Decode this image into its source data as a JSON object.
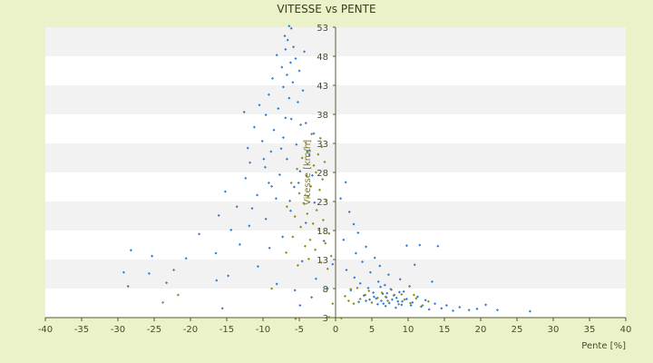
{
  "chart_data": {
    "type": "scatter",
    "title": "VITESSE vs PENTE",
    "xlabel": "Pente [%]",
    "ylabel": "Vitesse [km/h]",
    "xlim": [
      -40,
      40
    ],
    "ylim": [
      3,
      53
    ],
    "x_ticks": [
      -40,
      -35,
      -30,
      -25,
      -20,
      -15,
      -10,
      -5,
      0,
      5,
      10,
      15,
      20,
      25,
      30,
      35,
      40
    ],
    "y_ticks": [
      3,
      8,
      13,
      18,
      23,
      28,
      33,
      38,
      43,
      48,
      53
    ],
    "grid": "horizontal alternating bands",
    "colors": {
      "background": "#ebf1c9",
      "band_white": "#ffffff",
      "band_gray": "#f2f2f2",
      "axis": "#5a5a30",
      "series_blue": "#2e7bd1",
      "series_olive": "#8a8a1e"
    },
    "series": [
      {
        "color": "#2e7bd1",
        "points": [
          [
            -6.4,
            53.2
          ],
          [
            -6.1,
            52.8
          ],
          [
            -7.0,
            51.5
          ],
          [
            -6.6,
            50.8
          ],
          [
            -5.8,
            49.6
          ],
          [
            -6.9,
            49.2
          ],
          [
            -4.3,
            48.8
          ],
          [
            -8.1,
            48.2
          ],
          [
            -5.5,
            47.6
          ],
          [
            -6.2,
            46.9
          ],
          [
            -7.4,
            46.1
          ],
          [
            -5.0,
            45.5
          ],
          [
            -6.7,
            44.8
          ],
          [
            -8.7,
            44.2
          ],
          [
            -5.9,
            43.5
          ],
          [
            -7.2,
            42.7
          ],
          [
            -4.5,
            42.1
          ],
          [
            -9.2,
            41.4
          ],
          [
            -6.4,
            40.8
          ],
          [
            -5.2,
            40.1
          ],
          [
            -10.5,
            39.6
          ],
          [
            -7.9,
            39.0
          ],
          [
            -12.6,
            38.4
          ],
          [
            -9.6,
            37.9
          ],
          [
            -6.1,
            37.2
          ],
          [
            -4.1,
            36.5
          ],
          [
            -11.2,
            35.8
          ],
          [
            -8.5,
            35.3
          ],
          [
            -3.0,
            34.7
          ],
          [
            -7.2,
            34.0
          ],
          [
            -10.1,
            33.4
          ],
          [
            -5.4,
            32.8
          ],
          [
            -12.1,
            32.2
          ],
          [
            -8.9,
            31.6
          ],
          [
            -3.6,
            31.0
          ],
          [
            -6.7,
            30.3
          ],
          [
            -11.8,
            29.7
          ],
          [
            -9.7,
            28.9
          ],
          [
            -4.9,
            28.2
          ],
          [
            -7.7,
            27.6
          ],
          [
            -12.4,
            27.0
          ],
          [
            -9.2,
            26.2
          ],
          [
            -5.7,
            25.5
          ],
          [
            -15.2,
            24.7
          ],
          [
            -10.8,
            24.1
          ],
          [
            -8.2,
            23.5
          ],
          [
            -2.9,
            22.8
          ],
          [
            -13.6,
            22.1
          ],
          [
            -6.2,
            21.4
          ],
          [
            -16.1,
            20.6
          ],
          [
            -9.6,
            20.0
          ],
          [
            -4.1,
            19.3
          ],
          [
            -11.9,
            18.8
          ],
          [
            -14.4,
            18.1
          ],
          [
            -18.8,
            17.4
          ],
          [
            -7.3,
            16.9
          ],
          [
            -1.6,
            16.2
          ],
          [
            -13.2,
            15.6
          ],
          [
            -9.1,
            15.0
          ],
          [
            -28.2,
            14.6
          ],
          [
            -16.5,
            14.1
          ],
          [
            -25.3,
            13.6
          ],
          [
            -20.6,
            13.2
          ],
          [
            -4.6,
            12.7
          ],
          [
            -0.4,
            12.2
          ],
          [
            -10.7,
            11.8
          ],
          [
            -22.3,
            11.2
          ],
          [
            -29.2,
            10.8
          ],
          [
            -25.7,
            10.6
          ],
          [
            -14.8,
            10.2
          ],
          [
            -2.7,
            9.7
          ],
          [
            -16.4,
            9.4
          ],
          [
            -23.3,
            9.0
          ],
          [
            -8.1,
            8.8
          ],
          [
            -28.6,
            8.4
          ],
          [
            -1.1,
            8.0
          ],
          [
            -5.6,
            7.7
          ],
          [
            -3.3,
            6.5
          ],
          [
            -15.6,
            4.6
          ],
          [
            -4.9,
            5.1
          ],
          [
            1.4,
            26.3
          ],
          [
            0.7,
            23.5
          ],
          [
            1.9,
            21.2
          ],
          [
            2.5,
            19.1
          ],
          [
            3.1,
            17.6
          ],
          [
            1.1,
            16.4
          ],
          [
            4.2,
            15.2
          ],
          [
            2.8,
            14.1
          ],
          [
            5.4,
            13.3
          ],
          [
            3.7,
            12.6
          ],
          [
            6.1,
            11.9
          ],
          [
            1.5,
            11.2
          ],
          [
            4.8,
            10.8
          ],
          [
            7.3,
            10.4
          ],
          [
            2.6,
            9.9
          ],
          [
            8.9,
            9.6
          ],
          [
            5.9,
            9.2
          ],
          [
            3.4,
            8.9
          ],
          [
            6.8,
            8.6
          ],
          [
            10.2,
            8.4
          ],
          [
            4.5,
            8.1
          ],
          [
            7.6,
            7.9
          ],
          [
            2.1,
            7.7
          ],
          [
            9.4,
            7.5
          ],
          [
            5.2,
            7.3
          ],
          [
            6.5,
            7.1
          ],
          [
            8.1,
            6.9
          ],
          [
            3.9,
            6.8
          ],
          [
            11.3,
            6.6
          ],
          [
            7.0,
            6.5
          ],
          [
            5.6,
            6.3
          ],
          [
            9.8,
            6.2
          ],
          [
            4.7,
            6.1
          ],
          [
            12.4,
            6.0
          ],
          [
            6.3,
            5.9
          ],
          [
            8.6,
            5.8
          ],
          [
            3.2,
            5.7
          ],
          [
            10.6,
            5.6
          ],
          [
            7.4,
            5.5
          ],
          [
            13.7,
            5.4
          ],
          [
            5.8,
            5.3
          ],
          [
            9.1,
            5.2
          ],
          [
            15.3,
            5.1
          ],
          [
            6.9,
            5.0
          ],
          [
            11.8,
            4.9
          ],
          [
            17.1,
            4.8
          ],
          [
            8.3,
            4.7
          ],
          [
            14.6,
            4.6
          ],
          [
            19.5,
            4.5
          ],
          [
            12.9,
            4.4
          ],
          [
            22.3,
            4.3
          ],
          [
            16.2,
            4.2
          ],
          [
            26.8,
            4.1
          ],
          [
            18.4,
            4.3
          ],
          [
            20.7,
            5.2
          ],
          [
            14.1,
            15.3
          ],
          [
            9.8,
            15.4
          ],
          [
            11.6,
            15.5
          ],
          [
            13.3,
            9.2
          ],
          [
            10.9,
            12.1
          ],
          [
            6.2,
            8.3
          ],
          [
            7.1,
            7.2
          ],
          [
            8.4,
            6.4
          ],
          [
            4.2,
            5.9
          ],
          [
            5.3,
            6.6
          ],
          [
            6.6,
            5.4
          ],
          [
            7.8,
            6.1
          ],
          [
            9.2,
            5.8
          ],
          [
            10.4,
            5.1
          ],
          [
            8.8,
            7.4
          ],
          [
            -3.9,
            31.6
          ],
          [
            -4.8,
            36.2
          ],
          [
            -6.9,
            37.4
          ],
          [
            -7.5,
            32.1
          ],
          [
            -9.9,
            30.3
          ],
          [
            -3.2,
            27.5
          ],
          [
            -5.1,
            26.2
          ],
          [
            -8.8,
            25.6
          ],
          [
            -6.3,
            23.1
          ],
          [
            -11.5,
            21.8
          ]
        ]
      },
      {
        "color": "#8a8a1e",
        "points": [
          [
            -3.3,
            34.6
          ],
          [
            -2.1,
            33.9
          ],
          [
            -4.1,
            33.1
          ],
          [
            -1.9,
            32.4
          ],
          [
            -3.6,
            31.8
          ],
          [
            -2.4,
            31.1
          ],
          [
            -4.6,
            30.5
          ],
          [
            -1.5,
            29.8
          ],
          [
            -3.0,
            29.2
          ],
          [
            -5.3,
            28.6
          ],
          [
            -2.7,
            28.0
          ],
          [
            -4.0,
            27.4
          ],
          [
            -1.8,
            26.8
          ],
          [
            -6.1,
            26.2
          ],
          [
            -3.4,
            25.6
          ],
          [
            -2.2,
            25.0
          ],
          [
            -5.0,
            24.4
          ],
          [
            -3.8,
            23.9
          ],
          [
            -1.3,
            23.3
          ],
          [
            -4.4,
            22.7
          ],
          [
            -6.7,
            22.1
          ],
          [
            -2.6,
            21.5
          ],
          [
            -3.9,
            20.9
          ],
          [
            -5.6,
            20.4
          ],
          [
            -1.7,
            19.8
          ],
          [
            -3.1,
            19.2
          ],
          [
            -4.8,
            18.6
          ],
          [
            -2.3,
            18.1
          ],
          [
            -0.9,
            17.5
          ],
          [
            -5.9,
            16.9
          ],
          [
            -3.5,
            16.4
          ],
          [
            -1.4,
            15.8
          ],
          [
            -4.2,
            15.3
          ],
          [
            -2.8,
            14.7
          ],
          [
            -6.8,
            14.2
          ],
          [
            -0.6,
            13.6
          ],
          [
            -3.7,
            13.1
          ],
          [
            -2.0,
            12.5
          ],
          [
            -5.2,
            12.0
          ],
          [
            -1.1,
            11.4
          ],
          [
            -21.7,
            6.9
          ],
          [
            -23.8,
            5.6
          ],
          [
            -8.8,
            8.0
          ],
          [
            -5.5,
            2.8
          ],
          [
            -0.9,
            3.1
          ],
          [
            0.8,
            2.9
          ],
          [
            -0.4,
            5.4
          ],
          [
            1.3,
            6.7
          ],
          [
            2.1,
            7.9
          ],
          [
            3.4,
            6.2
          ],
          [
            4.1,
            6.9
          ],
          [
            5.0,
            5.6
          ],
          [
            5.8,
            6.4
          ],
          [
            6.4,
            7.3
          ],
          [
            7.2,
            5.9
          ],
          [
            8.0,
            6.8
          ],
          [
            8.7,
            5.3
          ],
          [
            9.5,
            6.1
          ],
          [
            10.3,
            5.5
          ],
          [
            11.1,
            6.3
          ],
          [
            12.0,
            5.1
          ],
          [
            12.8,
            5.8
          ],
          [
            3.0,
            8.1
          ],
          [
            4.6,
            7.6
          ],
          [
            6.9,
            6.6
          ],
          [
            7.7,
            7.8
          ],
          [
            9.1,
            7.0
          ],
          [
            10.8,
            6.9
          ],
          [
            2.5,
            5.4
          ],
          [
            1.8,
            5.9
          ]
        ]
      }
    ]
  }
}
